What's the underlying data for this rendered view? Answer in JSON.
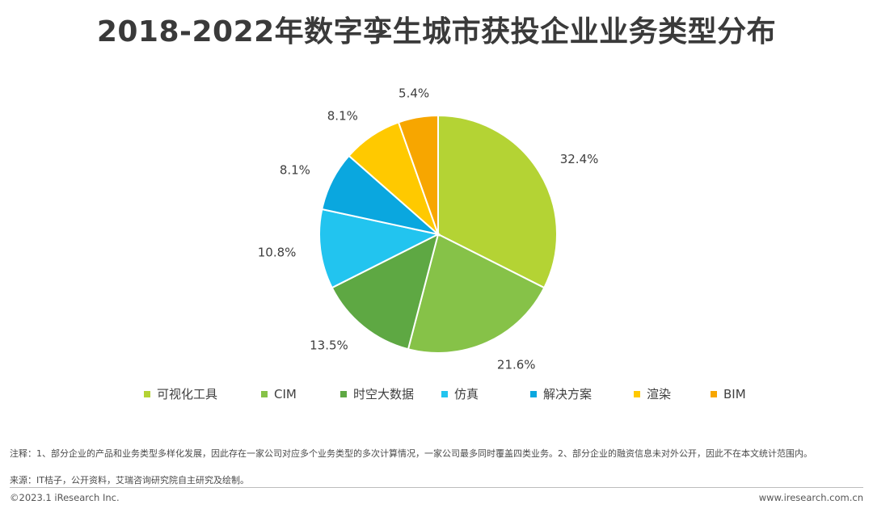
{
  "chart_data": {
    "type": "pie",
    "title": "2018-2022年数字孪生城市获投企业业务类型分布",
    "categories": [
      "可视化工具",
      "CIM",
      "时空大数据",
      "仿真",
      "解决方案",
      "渲染",
      "BIM"
    ],
    "values": [
      32.4,
      21.6,
      13.5,
      10.8,
      8.1,
      8.1,
      5.4
    ],
    "labels": [
      "32.4%",
      "21.6%",
      "13.5%",
      "10.8%",
      "8.1%",
      "8.1%",
      "5.4%"
    ],
    "colors": [
      "#b4d334",
      "#86c248",
      "#5ea843",
      "#22c4ef",
      "#0aa7df",
      "#ffc900",
      "#f7a600"
    ],
    "legend_position": "bottom"
  },
  "notes": {
    "note_text": "注释：1、部分企业的产品和业务类型多样化发展，因此存在一家公司对应多个业务类型的多次计算情况，一家公司最多同时覆盖四类业务。2、部分企业的融资信息未对外公开，因此不在本文统计范围内。",
    "source_text": "来源：IT桔子，公开资料，艾瑞咨询研究院自主研究及绘制。"
  },
  "footer": {
    "copyright": "©2023.1 iResearch Inc.",
    "website": "www.iresearch.com.cn"
  }
}
